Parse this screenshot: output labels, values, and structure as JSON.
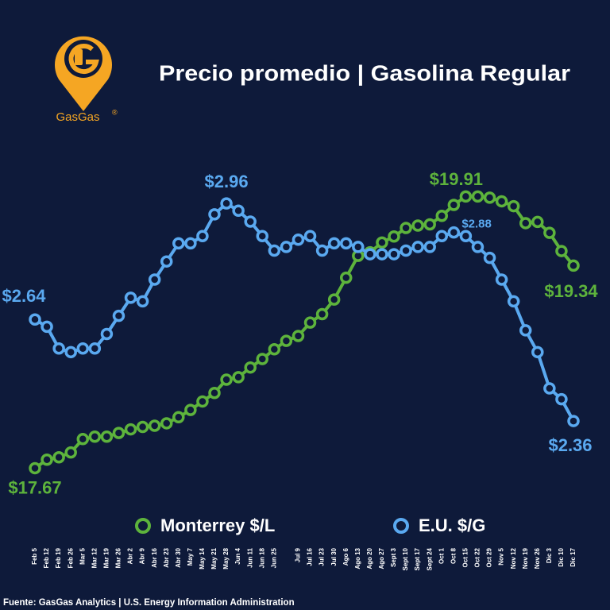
{
  "logo_text": "GasGas",
  "logo_mark": "®",
  "chart_data": {
    "type": "line",
    "title": "Precio promedio | Gasolina Regular",
    "source": "Fuente: GasGas Analytics | U.S. Energy Information Administration",
    "categories": [
      "Feb 5",
      "Feb 12",
      "Feb 19",
      "Feb 26",
      "Mar 5",
      "Mar 12",
      "Mar 19",
      "Mar 26",
      "Abr 2",
      "Abr 9",
      "Abr 16",
      "Abr 23",
      "Abr 30",
      "May 7",
      "May 14",
      "May 21",
      "May 28",
      "Jun 4",
      "Jun 11",
      "Jun 18",
      "Jun 25",
      null,
      "Jul 9",
      "Jul 16",
      "Jul 23",
      "Jul 30",
      "Ago 6",
      "Ago 13",
      "Ago 20",
      "Ago 27",
      "Sept 3",
      "Sept 10",
      "Sept 17",
      "Sept 24",
      "Oct 1",
      "Oct 8",
      "Oct 15",
      "Oct 22",
      "Oct 29",
      "Nov 5",
      "Nov 12",
      "Nov 19",
      "Nov 26",
      "Dic 3",
      "Dic 10",
      "Dic 17"
    ],
    "ylim": [
      17.47,
      20.22
    ],
    "y2lim": [
      2.163,
      3.083
    ],
    "legend": "bottom",
    "series": [
      {
        "name": "Monterrey $/L",
        "color": "#5db33c",
        "values": [
          17.67,
          17.74,
          17.76,
          17.8,
          17.91,
          17.93,
          17.93,
          17.96,
          17.99,
          18.01,
          18.02,
          18.04,
          18.09,
          18.15,
          18.22,
          18.29,
          18.4,
          18.42,
          18.5,
          18.57,
          18.65,
          18.72,
          18.76,
          18.87,
          18.94,
          19.06,
          19.24,
          19.42,
          19.45,
          19.53,
          19.58,
          19.65,
          19.67,
          19.68,
          19.75,
          19.84,
          19.91,
          19.91,
          19.9,
          19.87,
          19.83,
          19.69,
          19.7,
          19.61,
          19.46,
          19.34
        ],
        "value_labels": [
          "$17.67",
          null,
          null,
          null,
          null,
          null,
          null,
          null,
          null,
          null,
          null,
          null,
          null,
          null,
          null,
          null,
          null,
          null,
          null,
          null,
          null,
          null,
          null,
          null,
          null,
          null,
          null,
          null,
          null,
          null,
          null,
          null,
          null,
          null,
          null,
          null,
          "$19.91",
          null,
          null,
          null,
          null,
          null,
          null,
          null,
          null,
          "$19.34"
        ]
      },
      {
        "name": "E.U. $/G",
        "color": "#5aa9f0",
        "axis": "y2",
        "values": [
          2.64,
          2.62,
          2.56,
          2.55,
          2.56,
          2.56,
          2.6,
          2.65,
          2.7,
          2.69,
          2.75,
          2.8,
          2.85,
          2.85,
          2.87,
          2.93,
          2.96,
          2.94,
          2.91,
          2.87,
          2.83,
          2.84,
          2.86,
          2.87,
          2.83,
          2.85,
          2.85,
          2.84,
          2.82,
          2.82,
          2.82,
          2.83,
          2.84,
          2.84,
          2.87,
          2.88,
          2.87,
          2.84,
          2.81,
          2.75,
          2.69,
          2.61,
          2.55,
          2.45,
          2.42,
          2.36
        ],
        "value_labels": [
          "$2.64",
          null,
          null,
          null,
          null,
          null,
          null,
          null,
          null,
          null,
          null,
          null,
          null,
          null,
          null,
          null,
          "$2.96",
          null,
          null,
          null,
          null,
          null,
          null,
          null,
          null,
          null,
          null,
          null,
          null,
          null,
          null,
          null,
          null,
          null,
          null,
          "$2.88",
          null,
          null,
          null,
          null,
          null,
          null,
          null,
          null,
          null,
          "$2.36"
        ]
      }
    ]
  }
}
